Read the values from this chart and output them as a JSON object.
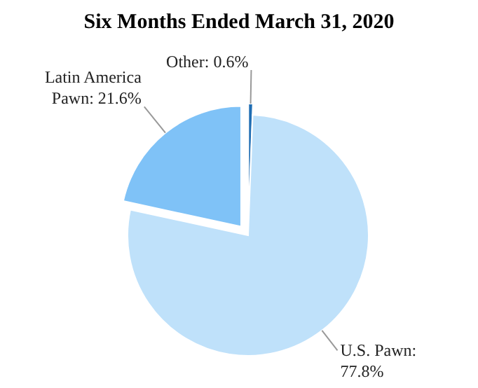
{
  "chart_data": {
    "type": "pie",
    "title": "Six Months Ended March 31, 2020",
    "categories": [
      "Other",
      "U.S. Pawn",
      "Latin America Pawn"
    ],
    "values": [
      0.6,
      77.8,
      21.6
    ],
    "colors": [
      "#1f6db3",
      "#bfe1fa",
      "#7fc2f7"
    ],
    "value_labels": [
      ": 0.6%",
      ": 77.8%",
      ": 21.6%"
    ]
  }
}
